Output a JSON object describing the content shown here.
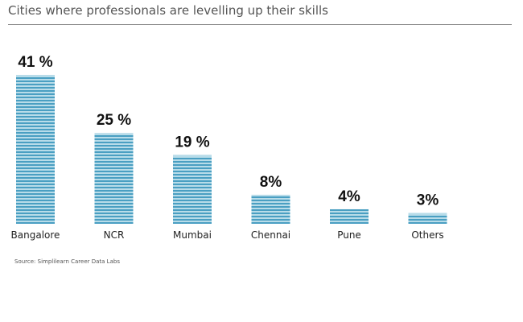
{
  "title": "Cities where professionals are levelling up their skills",
  "source": "Source: Simplilearn Career Data Labs",
  "colors": {
    "stripe_dark": "#4a9fc2",
    "stripe_light": "#b8dce9",
    "label_text": "#222222",
    "value_text": "#111111"
  },
  "chart_data": {
    "type": "bar",
    "categories": [
      "Bangalore",
      "NCR",
      "Mumbai",
      "Chennai",
      "Pune",
      "Others"
    ],
    "values": [
      41,
      25,
      19,
      8,
      4,
      3
    ],
    "value_labels": [
      "41 %",
      "25 %",
      "19 %",
      "8%",
      "4%",
      "3%"
    ],
    "unit": "%",
    "grid": false,
    "legend": "none"
  }
}
